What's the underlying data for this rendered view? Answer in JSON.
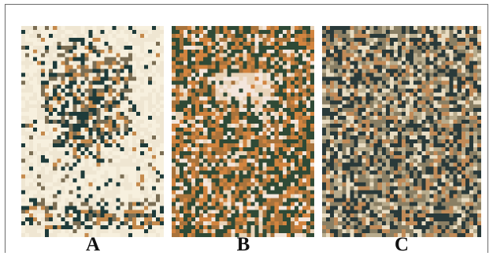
{
  "panels": [
    {
      "id": "a",
      "label": "A",
      "colors": {
        "bg": "#efe6d2",
        "dark": "#1e3b3a",
        "mid": "#7b6e54",
        "accent": "#c58a4c",
        "light": "#f7f0de"
      }
    },
    {
      "id": "b",
      "label": "B",
      "colors": {
        "bg": "#e8d3b8",
        "dark": "#2f4a36",
        "mid": "#a8733c",
        "accent": "#d2843f",
        "light": "#f3e6dc"
      }
    },
    {
      "id": "c",
      "label": "C",
      "colors": {
        "bg": "#b8ab8c",
        "dark": "#2a3a3a",
        "mid": "#8a7f64",
        "accent": "#c18b58",
        "light": "#e8dcc2"
      }
    }
  ]
}
